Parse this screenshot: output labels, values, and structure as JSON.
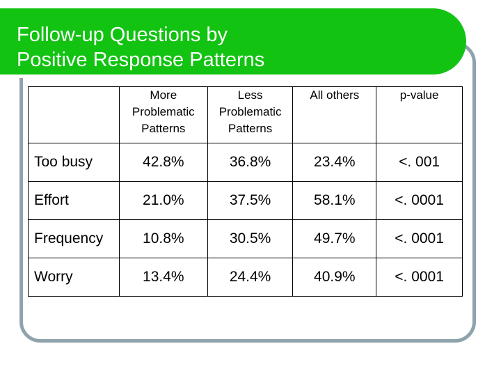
{
  "title": {
    "line1": "Follow-up Questions by",
    "line2": "Positive Response Patterns"
  },
  "colors": {
    "title_bar": "#12c312",
    "frame": "#8fa3ad",
    "title_text": "#ffffff"
  },
  "table": {
    "columns": [
      {
        "lines": []
      },
      {
        "lines": [
          "More",
          "Problematic",
          "Patterns"
        ]
      },
      {
        "lines": [
          "Less",
          "Problematic",
          "Patterns"
        ]
      },
      {
        "lines": [
          "All others"
        ]
      },
      {
        "lines": [
          "p-value"
        ]
      }
    ],
    "rows": [
      {
        "label": "Too busy",
        "values": [
          "42.8%",
          "36.8%",
          "23.4%",
          "<. 001"
        ]
      },
      {
        "label": "Effort",
        "values": [
          "21.0%",
          "37.5%",
          "58.1%",
          "<. 0001"
        ]
      },
      {
        "label": "Frequency",
        "values": [
          "10.8%",
          "30.5%",
          "49.7%",
          "<. 0001"
        ]
      },
      {
        "label": "Worry",
        "values": [
          "13.4%",
          "24.4%",
          "40.9%",
          "<. 0001"
        ]
      }
    ]
  }
}
